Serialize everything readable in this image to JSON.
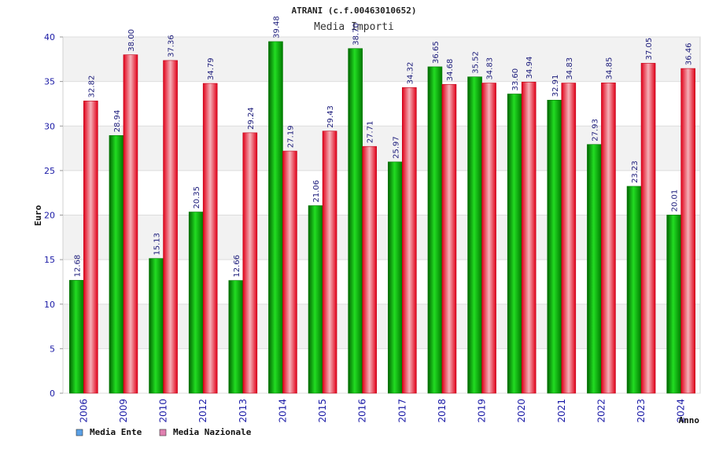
{
  "chart_data": {
    "type": "bar",
    "title": "ATRANI (c.f.00463010652)",
    "subtitle": "Media Importi",
    "xlabel": "Anno",
    "ylabel": "Euro",
    "ylim": [
      0,
      40
    ],
    "yticks": [
      0,
      5,
      10,
      15,
      20,
      25,
      30,
      35,
      40
    ],
    "grid": true,
    "legend_position": "bottom-left",
    "categories": [
      "2006",
      "2009",
      "2010",
      "2012",
      "2013",
      "2014",
      "2015",
      "2016",
      "2017",
      "2018",
      "2019",
      "2020",
      "2021",
      "2022",
      "2023",
      "2024"
    ],
    "series": [
      {
        "name": "Media Ente",
        "color": "#00b000",
        "legend_color": "#5aa0e6",
        "values": [
          12.68,
          28.94,
          15.13,
          20.35,
          12.66,
          39.48,
          21.06,
          38.7,
          25.97,
          36.65,
          35.52,
          33.6,
          32.91,
          27.93,
          23.23,
          20.01
        ],
        "labels": [
          "12.68",
          "28.94",
          "15.13",
          "20.35",
          "12.66",
          "39.48",
          "21.06",
          "38.70",
          "25.97",
          "36.65",
          "35.52",
          "33.60",
          "32.91",
          "27.93",
          "23.23",
          "20.01"
        ]
      },
      {
        "name": "Media Nazionale",
        "color": "#e8102a",
        "legend_color": "#e080b0",
        "values": [
          32.82,
          38.0,
          37.36,
          34.79,
          29.24,
          27.19,
          29.43,
          27.71,
          34.32,
          34.68,
          34.83,
          34.94,
          34.83,
          34.85,
          37.05,
          36.46
        ],
        "labels": [
          "32.82",
          "38.00",
          "37.36",
          "34.79",
          "29.24",
          "27.19",
          "29.43",
          "27.71",
          "34.32",
          "34.68",
          "34.83",
          "34.94",
          "34.83",
          "34.85",
          "37.05",
          "36.46"
        ]
      }
    ]
  }
}
